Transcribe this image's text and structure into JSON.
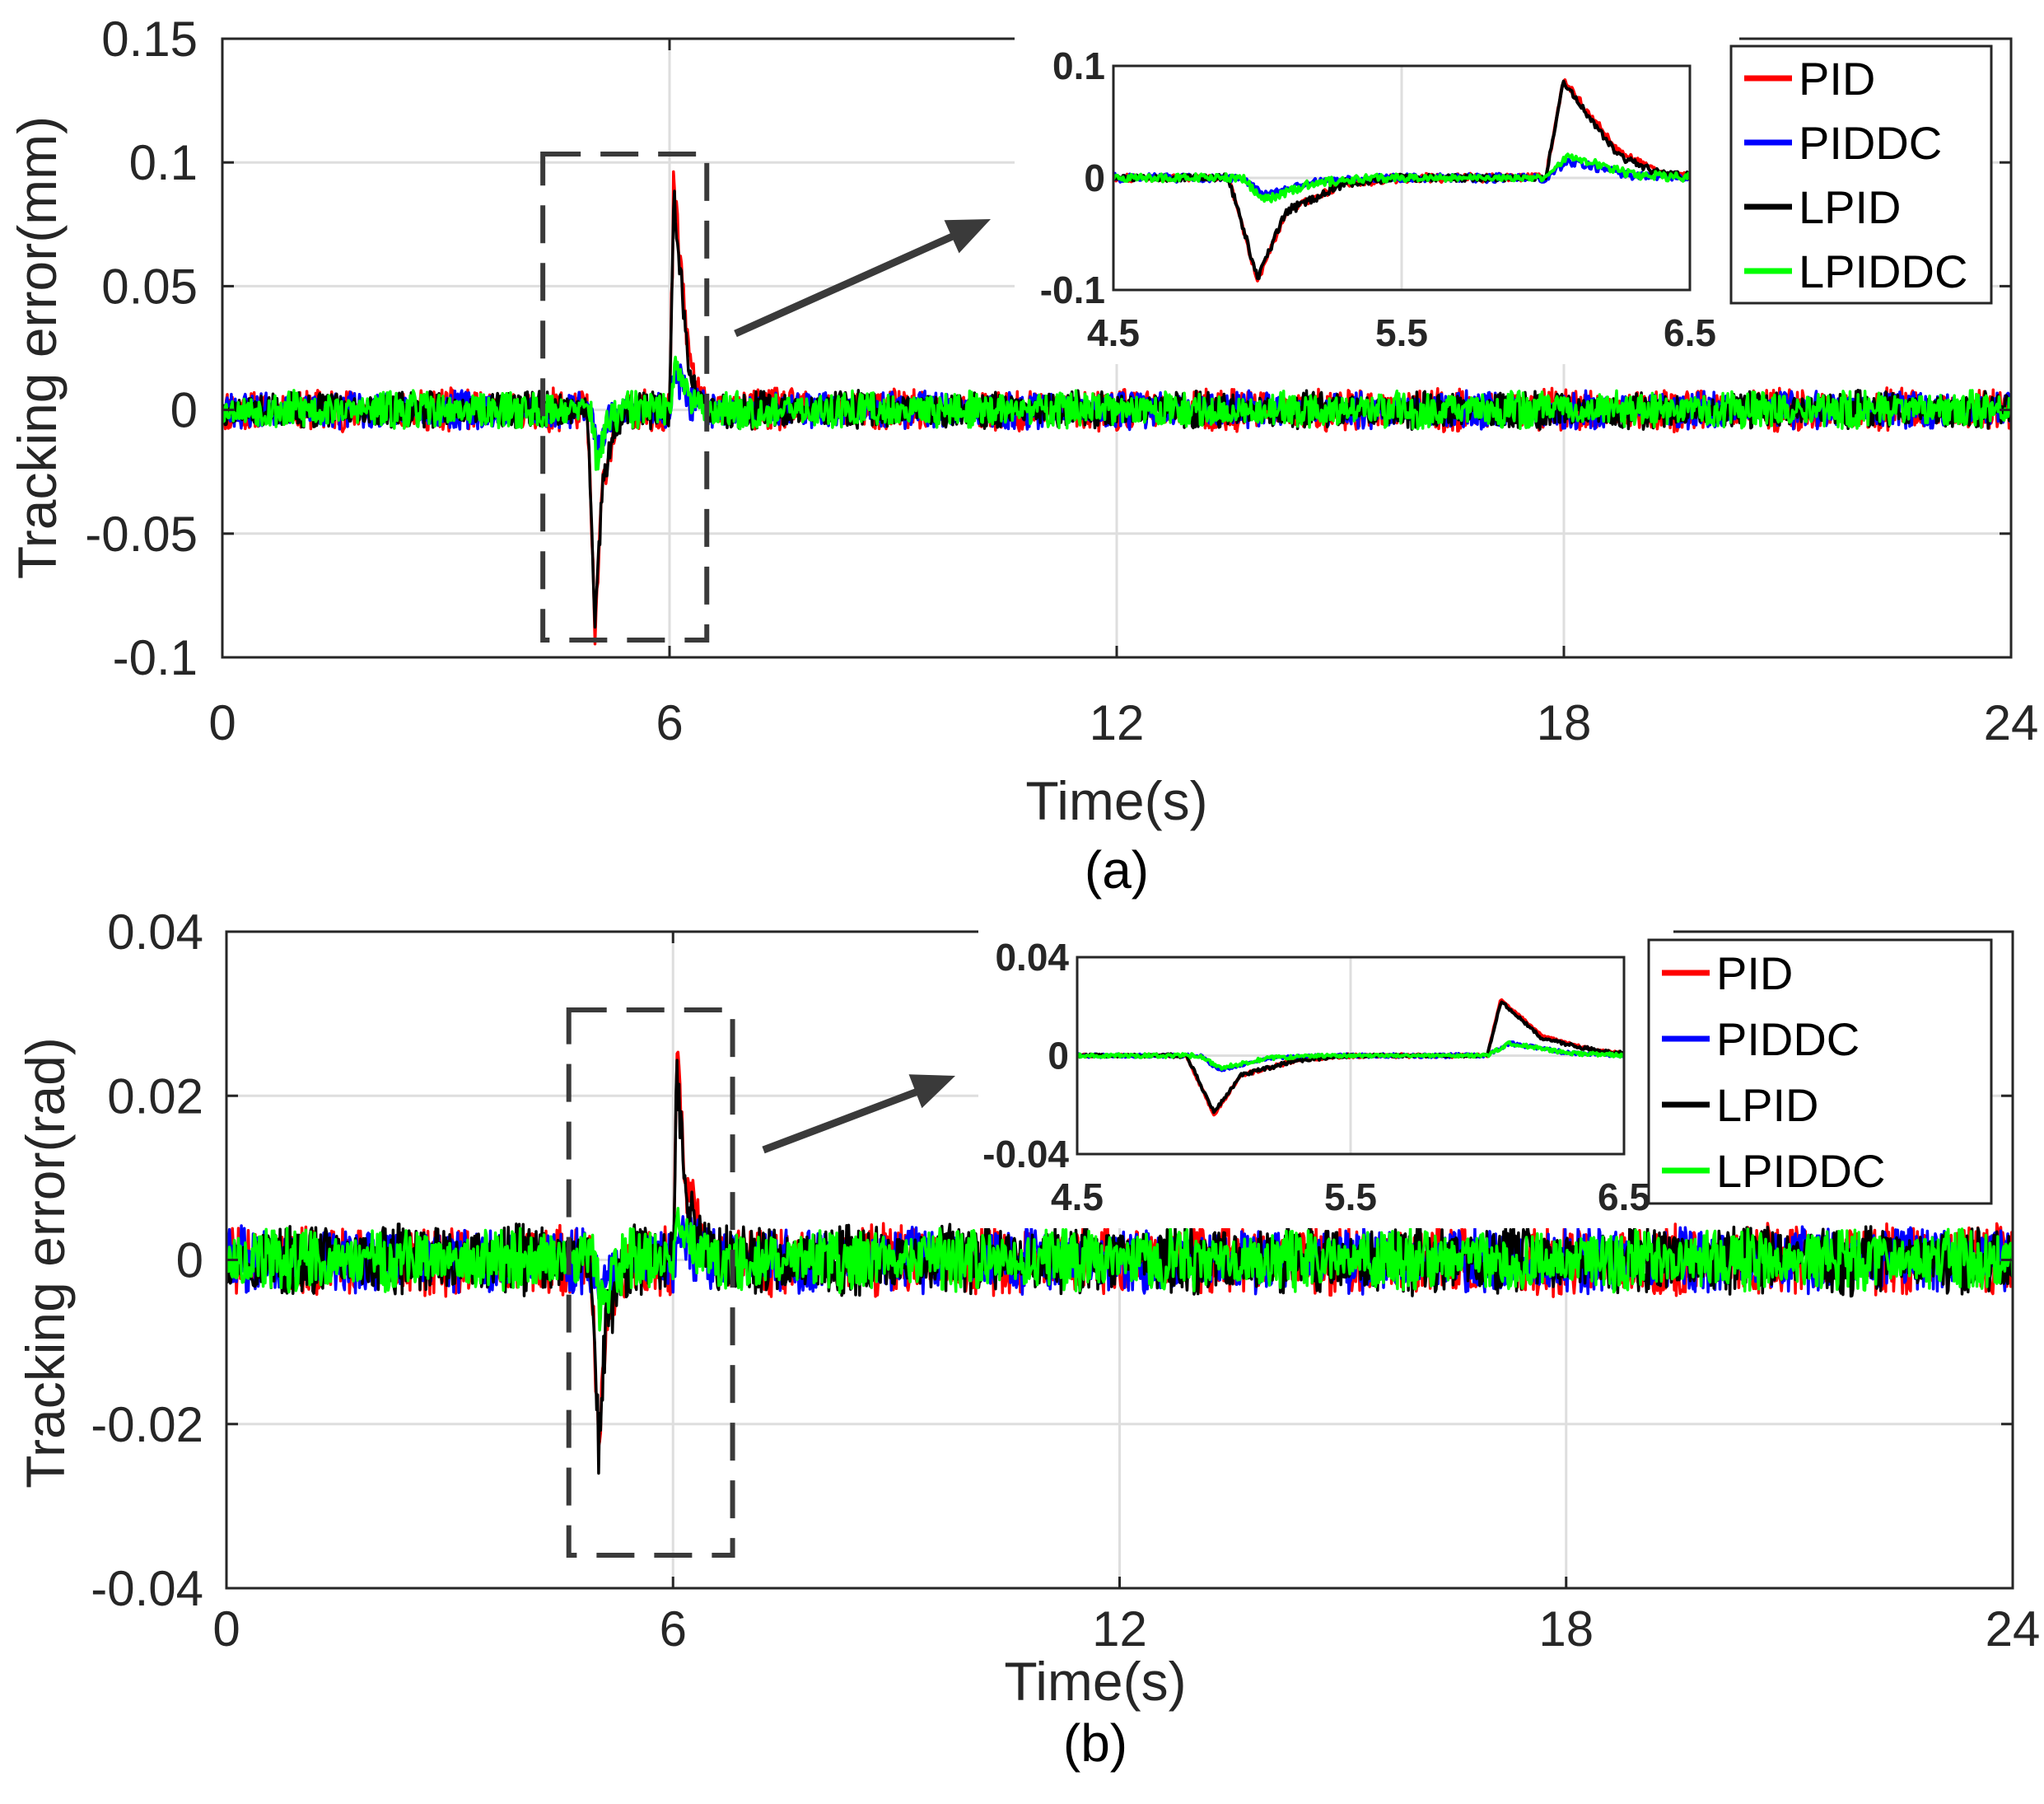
{
  "chart_data": [
    {
      "panel": "(a)",
      "type": "line",
      "xlabel": "Time(s)",
      "ylabel": "Tracking error(mm)",
      "xlim": [
        0,
        24
      ],
      "ylim": [
        -0.1,
        0.15
      ],
      "xticks": [
        0,
        6,
        12,
        18,
        24
      ],
      "xtick_labels": [
        "0",
        "6",
        "12",
        "18",
        "24"
      ],
      "yticks": [
        -0.1,
        -0.05,
        0,
        0.05,
        0.1,
        0.15
      ],
      "ytick_labels": [
        "-0.1",
        "-0.05",
        "0",
        "0.05",
        "0.1",
        "0.15"
      ],
      "grid": true,
      "legend_position": "top-right",
      "series": [
        {
          "name": "PID",
          "color": "#ff0000",
          "noise_amplitude": 0.009,
          "points": [
            [
              0,
              0
            ],
            [
              4.9,
              0
            ],
            [
              5.0,
              -0.092
            ],
            [
              5.1,
              -0.03
            ],
            [
              5.3,
              -0.005
            ],
            [
              5.5,
              0
            ],
            [
              6.0,
              0
            ],
            [
              6.06,
              0.088
            ],
            [
              6.25,
              0.025
            ],
            [
              6.4,
              0.004
            ],
            [
              6.6,
              0
            ],
            [
              24,
              0
            ]
          ]
        },
        {
          "name": "PIDDC",
          "color": "#0000ff",
          "noise_amplitude": 0.008,
          "points": [
            [
              0,
              0
            ],
            [
              4.95,
              0
            ],
            [
              5.02,
              -0.015
            ],
            [
              5.2,
              -0.003
            ],
            [
              5.4,
              0
            ],
            [
              6.0,
              0
            ],
            [
              6.08,
              0.015
            ],
            [
              6.3,
              0.002
            ],
            [
              6.5,
              0
            ],
            [
              24,
              0
            ]
          ]
        },
        {
          "name": "LPID",
          "color": "#000000",
          "noise_amplitude": 0.008,
          "points": [
            [
              0,
              0
            ],
            [
              4.9,
              0
            ],
            [
              5.0,
              -0.09
            ],
            [
              5.1,
              -0.03
            ],
            [
              5.3,
              -0.005
            ],
            [
              5.5,
              0
            ],
            [
              6.0,
              0
            ],
            [
              6.06,
              0.086
            ],
            [
              6.25,
              0.02
            ],
            [
              6.4,
              0.003
            ],
            [
              6.6,
              0
            ],
            [
              24,
              0
            ]
          ]
        },
        {
          "name": "LPIDDC",
          "color": "#00ff00",
          "noise_amplitude": 0.008,
          "points": [
            [
              0,
              0
            ],
            [
              4.95,
              0
            ],
            [
              5.02,
              -0.02
            ],
            [
              5.2,
              -0.004
            ],
            [
              5.4,
              0
            ],
            [
              6.0,
              0
            ],
            [
              6.08,
              0.02
            ],
            [
              6.3,
              0.003
            ],
            [
              6.5,
              0
            ],
            [
              24,
              0
            ]
          ]
        }
      ],
      "highlight_box_x": [
        4.3,
        6.5
      ],
      "inset": {
        "xlim": [
          4.5,
          6.5
        ],
        "ylim": [
          -0.1,
          0.1
        ],
        "xticks": [
          4.5,
          5.5,
          6.5
        ],
        "xtick_labels": [
          "4.5",
          "5.5",
          "6.5"
        ],
        "yticks": [
          -0.1,
          0,
          0.1
        ],
        "ytick_labels": [
          "-0.1",
          "0",
          "0.1"
        ],
        "noise_amplitude": 0.004
      }
    },
    {
      "panel": "(b)",
      "type": "line",
      "xlabel": "Time(s)",
      "ylabel": "Tracking error(rad)",
      "xlim": [
        0,
        24
      ],
      "ylim": [
        -0.04,
        0.04
      ],
      "xticks": [
        0,
        6,
        12,
        18,
        24
      ],
      "xtick_labels": [
        "0",
        "6",
        "12",
        "18",
        "24"
      ],
      "yticks": [
        -0.04,
        -0.02,
        0,
        0.02,
        0.04
      ],
      "ytick_labels": [
        "-0.04",
        "-0.02",
        "0",
        "0.02",
        "0.04"
      ],
      "grid": true,
      "legend_position": "top-right",
      "series": [
        {
          "name": "PID",
          "color": "#ff0000",
          "noise_amplitude": 0.0045,
          "points": [
            [
              0,
              0
            ],
            [
              4.9,
              0
            ],
            [
              5.0,
              -0.024
            ],
            [
              5.1,
              -0.008
            ],
            [
              5.3,
              -0.002
            ],
            [
              5.5,
              0
            ],
            [
              6.0,
              0
            ],
            [
              6.05,
              0.023
            ],
            [
              6.2,
              0.008
            ],
            [
              6.4,
              0.002
            ],
            [
              6.6,
              0
            ],
            [
              24,
              0
            ]
          ]
        },
        {
          "name": "PIDDC",
          "color": "#0000ff",
          "noise_amplitude": 0.0042,
          "points": [
            [
              0,
              0
            ],
            [
              4.95,
              0
            ],
            [
              5.02,
              -0.006
            ],
            [
              5.2,
              -0.001
            ],
            [
              5.4,
              0
            ],
            [
              6.0,
              0
            ],
            [
              6.08,
              0.005
            ],
            [
              6.3,
              0.001
            ],
            [
              6.5,
              0
            ],
            [
              24,
              0
            ]
          ]
        },
        {
          "name": "LPID",
          "color": "#000000",
          "noise_amplitude": 0.0045,
          "points": [
            [
              0,
              0
            ],
            [
              4.9,
              0
            ],
            [
              5.0,
              -0.023
            ],
            [
              5.1,
              -0.008
            ],
            [
              5.3,
              -0.002
            ],
            [
              5.5,
              0
            ],
            [
              6.0,
              0
            ],
            [
              6.05,
              0.022
            ],
            [
              6.2,
              0.007
            ],
            [
              6.4,
              0.002
            ],
            [
              6.6,
              0
            ],
            [
              24,
              0
            ]
          ]
        },
        {
          "name": "LPIDDC",
          "color": "#00ff00",
          "noise_amplitude": 0.004,
          "points": [
            [
              0,
              0
            ],
            [
              4.95,
              0
            ],
            [
              5.02,
              -0.005
            ],
            [
              5.2,
              -0.001
            ],
            [
              5.4,
              0
            ],
            [
              6.0,
              0
            ],
            [
              6.08,
              0.005
            ],
            [
              6.3,
              0.001
            ],
            [
              6.5,
              0
            ],
            [
              24,
              0
            ]
          ]
        }
      ],
      "highlight_box_x": [
        4.6,
        6.8
      ],
      "inset": {
        "xlim": [
          4.5,
          6.5
        ],
        "ylim": [
          -0.04,
          0.04
        ],
        "xticks": [
          4.5,
          5.5,
          6.5
        ],
        "xtick_labels": [
          "4.5",
          "5.5",
          "6.5"
        ],
        "yticks": [
          -0.04,
          0,
          0.04
        ],
        "ytick_labels": [
          "-0.04",
          "0",
          "0.04"
        ],
        "noise_amplitude": 0.0008
      }
    }
  ],
  "captions": [
    "(a)",
    "(b)"
  ]
}
